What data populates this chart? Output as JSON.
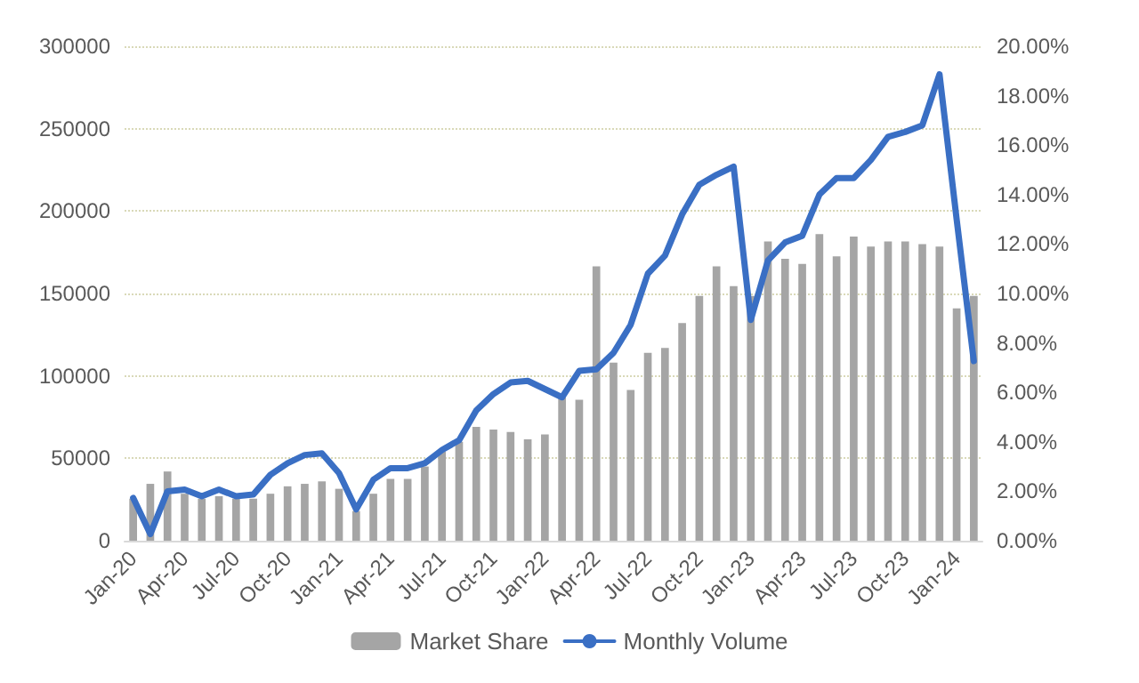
{
  "chart_data": {
    "type": "bar",
    "categories": [
      "Jan-20",
      null,
      null,
      "Apr-20",
      null,
      null,
      "Jul-20",
      null,
      null,
      "Oct-20",
      null,
      null,
      "Jan-21",
      null,
      null,
      "Apr-21",
      null,
      null,
      "Jul-21",
      null,
      null,
      "Oct-21",
      null,
      null,
      "Jan-22",
      null,
      null,
      "Apr-22",
      null,
      null,
      "Jul-22",
      null,
      null,
      "Oct-22",
      null,
      null,
      "Jan-23",
      null,
      null,
      "Apr-23",
      null,
      null,
      "Jul-23",
      null,
      null,
      "Oct-23",
      null,
      null,
      "Jan-24",
      null
    ],
    "series": [
      {
        "name": "Market Share",
        "axis": "y2",
        "color": "#a5a5a5",
        "values": [
          1.7,
          2.3,
          2.8,
          1.9,
          1.7,
          1.8,
          1.7,
          1.7,
          1.9,
          2.2,
          2.3,
          2.4,
          2.1,
          1.2,
          1.9,
          2.5,
          2.5,
          3.0,
          3.6,
          4.0,
          4.6,
          4.5,
          4.4,
          4.1,
          4.3,
          5.8,
          5.7,
          11.1,
          7.2,
          6.1,
          7.6,
          7.8,
          8.8,
          9.9,
          11.1,
          10.3,
          9.9,
          12.1,
          11.4,
          11.2,
          12.4,
          11.5,
          12.3,
          11.9,
          12.1,
          12.1,
          12.0,
          11.9,
          9.4,
          9.9
        ]
      },
      {
        "name": "Monthly Volume",
        "type": "line",
        "axis": "y",
        "color": "#3a6fc4",
        "values": [
          26000,
          4000,
          30000,
          31000,
          27000,
          31000,
          27000,
          28000,
          40000,
          47000,
          52000,
          53000,
          41000,
          19000,
          37000,
          44000,
          44000,
          47000,
          55000,
          61000,
          79000,
          89000,
          96000,
          97000,
          92000,
          87000,
          103000,
          104000,
          114000,
          131000,
          162000,
          173000,
          198000,
          216000,
          222000,
          227000,
          134000,
          170000,
          181000,
          185000,
          210000,
          220000,
          220000,
          231000,
          245000,
          248000,
          252000,
          283000,
          195000,
          109000
        ]
      }
    ],
    "ylim": [
      0,
      300000
    ],
    "yticks": [
      0,
      50000,
      100000,
      150000,
      200000,
      250000,
      300000
    ],
    "y2lim": [
      0,
      20
    ],
    "y2ticks": [
      {
        "value": 0,
        "label": "0.00%"
      },
      {
        "value": 2,
        "label": "2.00%"
      },
      {
        "value": 4,
        "label": "4.00%"
      },
      {
        "value": 6,
        "label": "6.00%"
      },
      {
        "value": 8,
        "label": "8.00%"
      },
      {
        "value": 10,
        "label": "10.00%"
      },
      {
        "value": 12,
        "label": "12.00%"
      },
      {
        "value": 14,
        "label": "14.00%"
      },
      {
        "value": 16,
        "label": "16.00%"
      },
      {
        "value": 18,
        "label": "18.00%"
      },
      {
        "value": 20,
        "label": "20.00%"
      }
    ],
    "grid": "y",
    "legend": "bottom",
    "marker": "none",
    "line_style": "solid"
  }
}
